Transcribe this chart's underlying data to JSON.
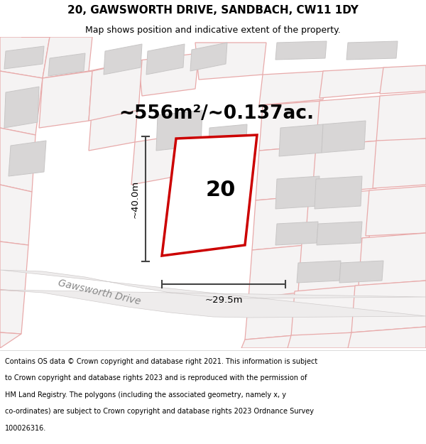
{
  "title": "20, GAWSWORTH DRIVE, SANDBACH, CW11 1DY",
  "subtitle": "Map shows position and indicative extent of the property.",
  "area_text": "~556m²/~0.137ac.",
  "label_number": "20",
  "width_label": "~29.5m",
  "height_label": "~40.0m",
  "road_label": "Gawsworth Drive",
  "footer_lines": [
    "Contains OS data © Crown copyright and database right 2021. This information is subject",
    "to Crown copyright and database rights 2023 and is reproduced with the permission of",
    "HM Land Registry. The polygons (including the associated geometry, namely x, y",
    "co-ordinates) are subject to Crown copyright and database rights 2023 Ordnance Survey",
    "100026316."
  ],
  "map_bg": "#f7f5f5",
  "pink": "#e8aaaa",
  "bld_fc": "#d8d6d6",
  "bld_ec": "#c8c6c6",
  "road_fc": "#eeecec",
  "road_ec": "#d0cccc",
  "plot_ec": "#cc0000",
  "dim_c": "#444444",
  "title_fs": 11,
  "subtitle_fs": 9,
  "area_fs": 19,
  "num_fs": 22,
  "foot_fs": 7.0,
  "road_label_fs": 10
}
